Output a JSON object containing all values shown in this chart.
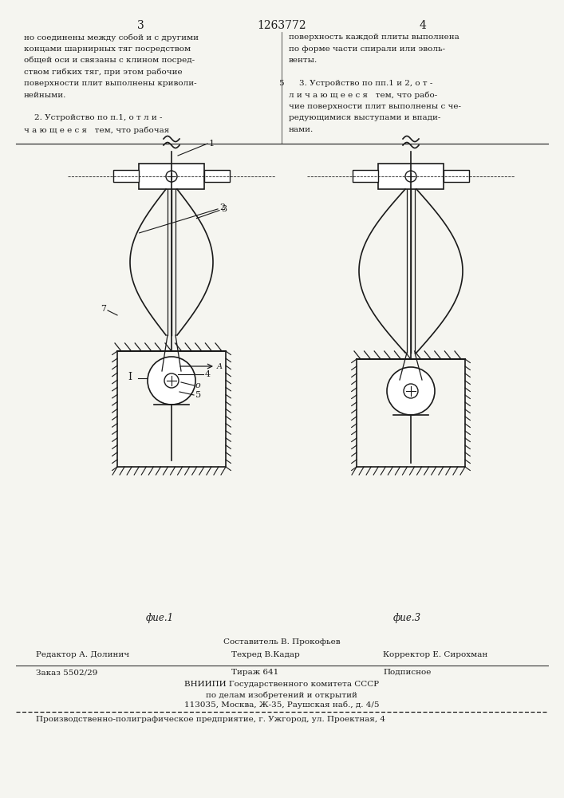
{
  "page_number_left": "3",
  "page_number_center": "1263772",
  "page_number_right": "4",
  "text_left_col": [
    "но соединены между собой и с другими",
    "концами шарнирных тяг посредством",
    "общей оси и связаны с клином посред-",
    "ством гибких тяг, при этом рабочие",
    "поверхности плит выполнены криволи-",
    "нейными.",
    "",
    "    2. Устройство по п.1, о т л и -",
    "ч а ю щ е е с я   тем, что рабочая"
  ],
  "text_right_col": [
    "поверхность каждой плиты выполнена",
    "по форме части спирали или эволь-",
    "венты.",
    "",
    "    3. Устройство по пп.1 и 2, о т -",
    "л и ч а ю щ е е с я   тем, что рабо-",
    "чие поверхности плит выполнены с че-",
    "редующимися выступами и впади-",
    "нами."
  ],
  "line_number": "5",
  "fig1_label": "фие.1",
  "fig3_label": "фие.3",
  "footer_line1": "Составитель В. Прокофьев",
  "footer_line2_left": "Редактор А. Долинич",
  "footer_line2_mid": "Техред В.Кадар",
  "footer_line2_right": "Корректор Е. Сирохман",
  "footer_line3_left": "Заказ 5502/29",
  "footer_line3_mid": "Тираж 641",
  "footer_line3_right": "Подписное",
  "footer_line4": "ВНИИПИ Государственного комитета СССР",
  "footer_line5": "по делам изобретений и открытий",
  "footer_line6": "113035, Москва, Ж-35, Раушская наб., д. 4/5",
  "footer_line7": "Производственно-полиграфическое предприятие, г. Ужгород, ул. Проектная, 4",
  "bg_color": "#f5f5f0",
  "text_color": "#1a1a1a",
  "line_color": "#1a1a1a"
}
